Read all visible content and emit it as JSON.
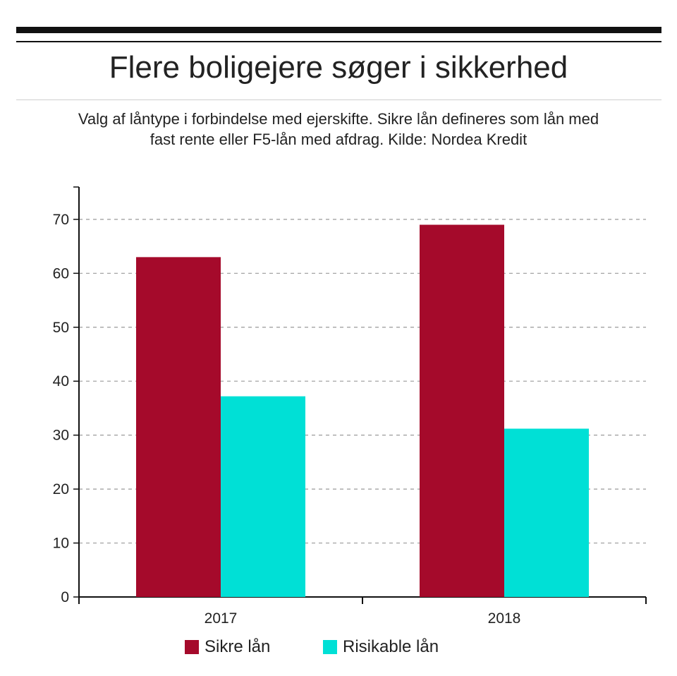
{
  "title": "Flere boligejere søger i sikkerhed",
  "subtitle_line1": "Valg af låntype i forbindelse med ejerskifte. Sikre lån defineres som lån med",
  "subtitle_line2": "fast rente eller F5-lån med afdrag. Kilde: Nordea Kredit",
  "chart_data": {
    "type": "bar",
    "categories": [
      "2017",
      "2018"
    ],
    "series": [
      {
        "name": "Sikre lån",
        "values": [
          63,
          69
        ],
        "color": "#a50a2b"
      },
      {
        "name": "Risikable lån",
        "values": [
          37.2,
          31.2
        ],
        "color": "#00e0d6"
      }
    ],
    "yticks": [
      0,
      10,
      20,
      30,
      40,
      50,
      60,
      70
    ],
    "ylim": [
      0,
      76
    ],
    "grid": "dashed horizontal",
    "legend": "bottom-center"
  }
}
